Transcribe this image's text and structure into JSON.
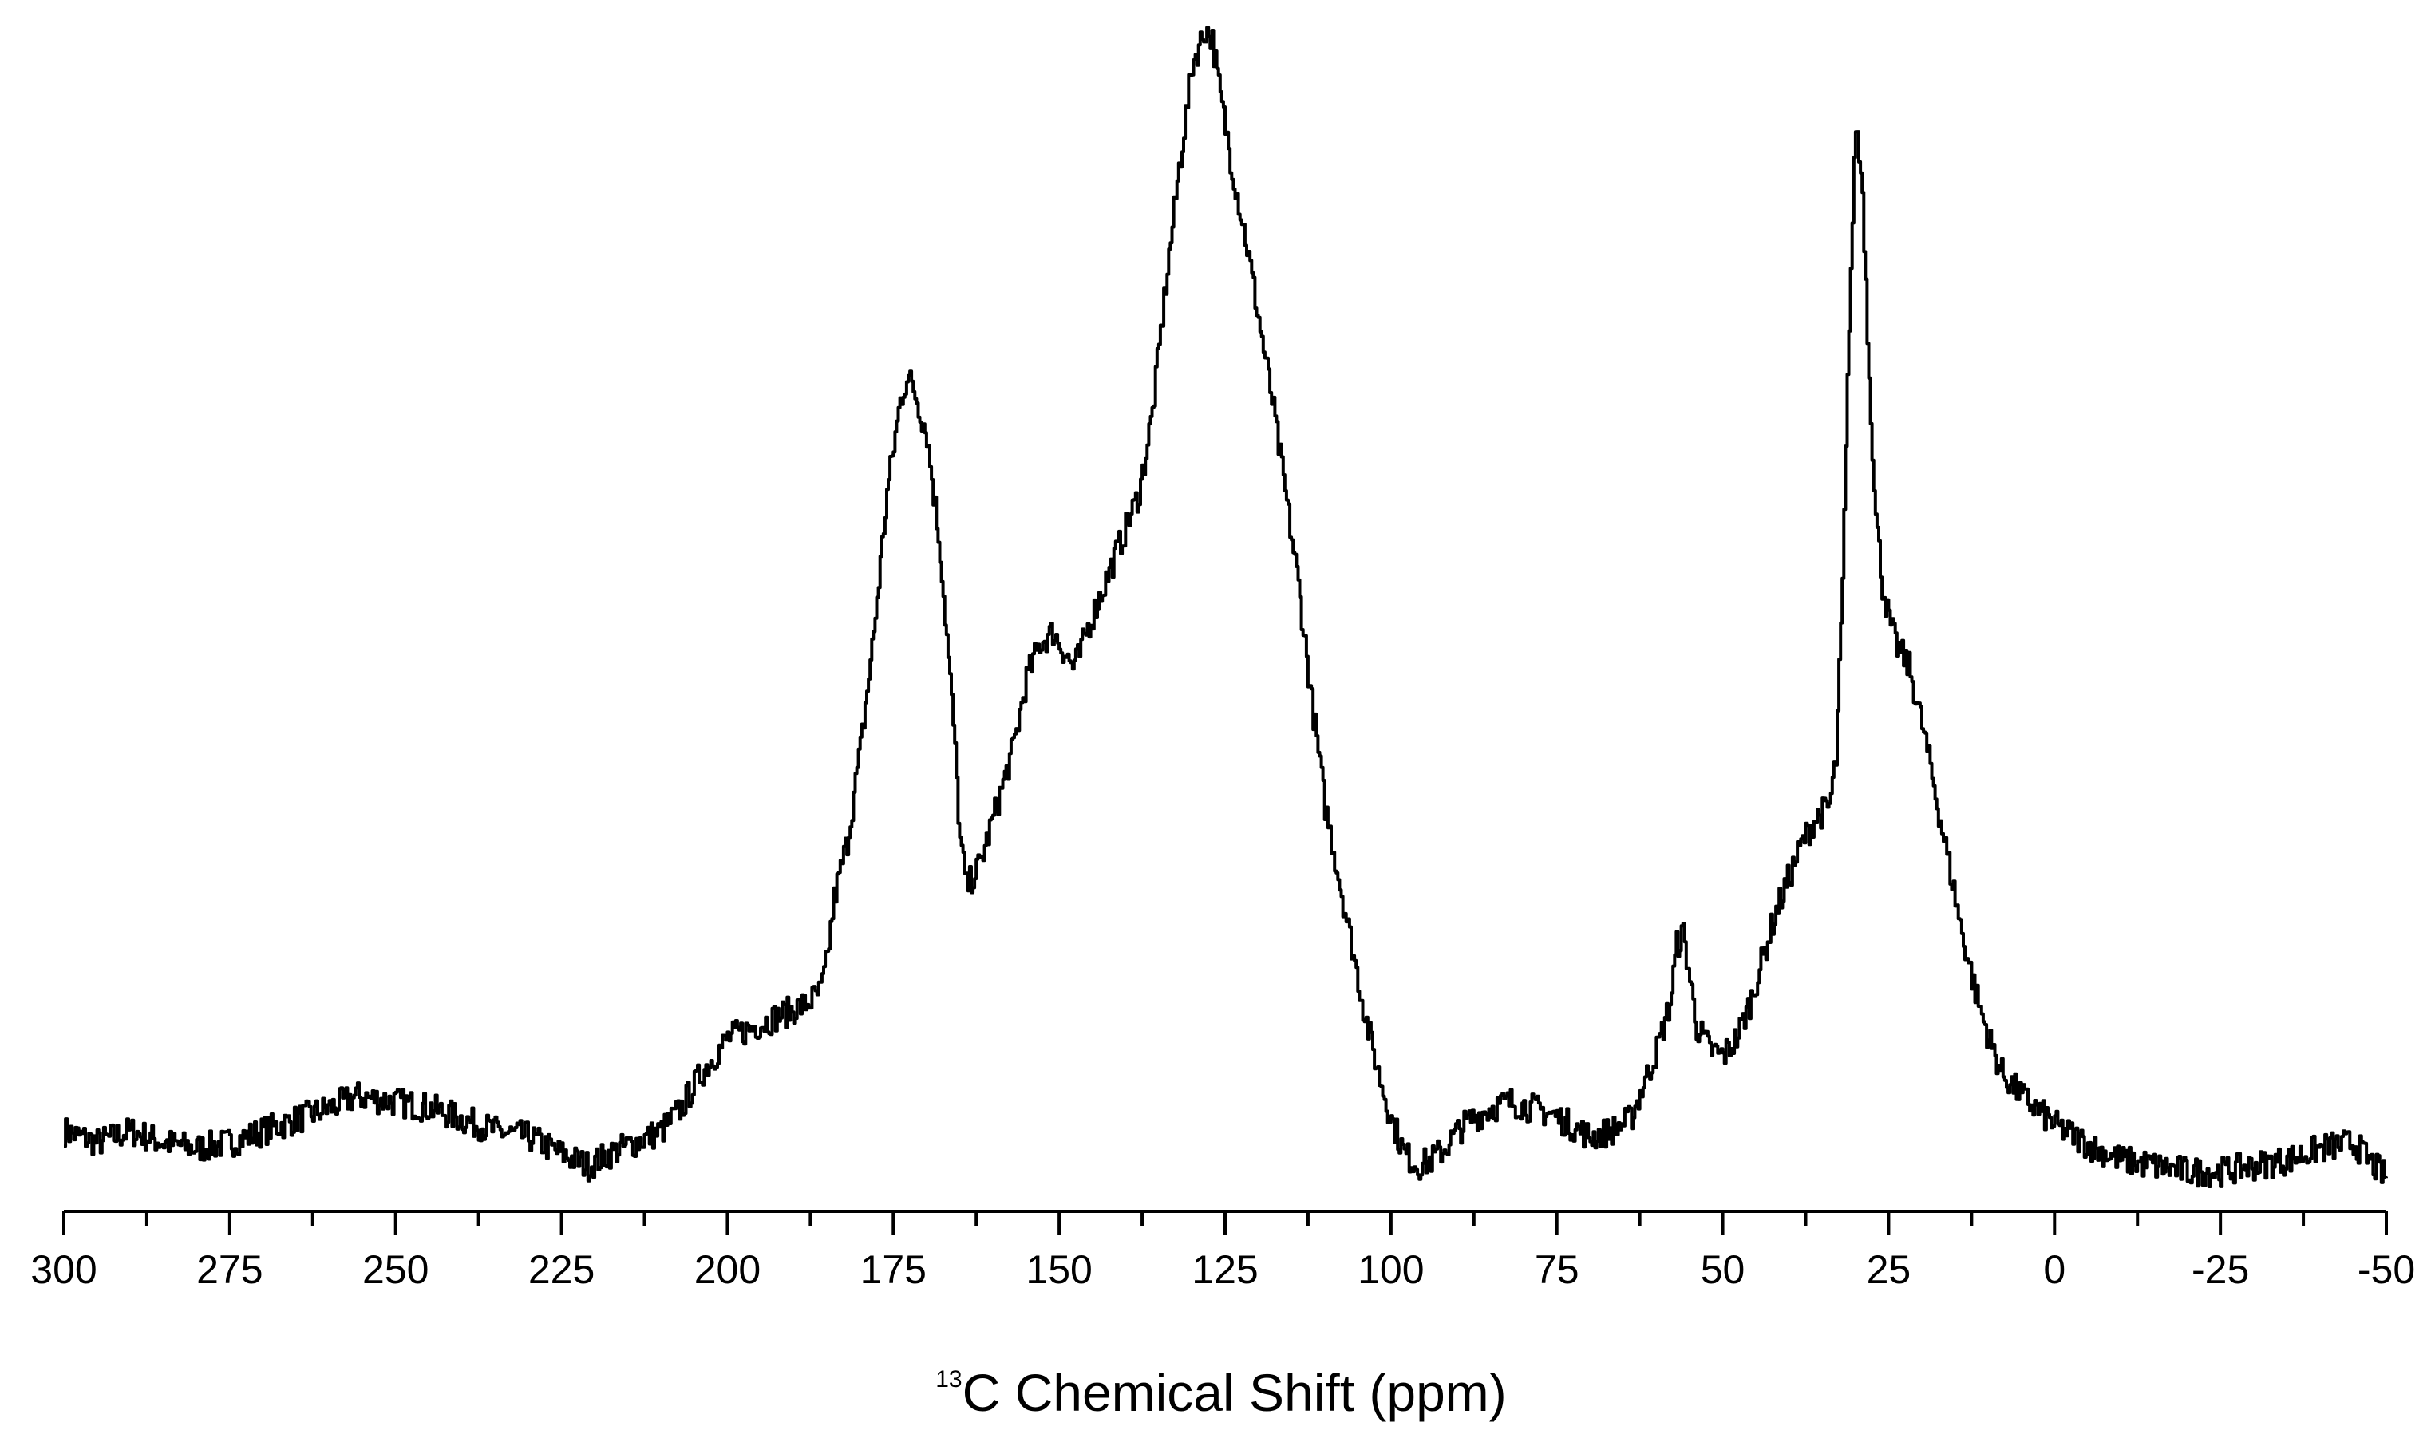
{
  "chart_data": {
    "type": "line",
    "title": "",
    "xlabel_superscript": "13",
    "xlabel": "C Chemical Shift (ppm)",
    "ylabel": "",
    "xlim": [
      300,
      -50
    ],
    "x_reversed": true,
    "ylim": [
      0,
      100
    ],
    "y_axis_visible": false,
    "grid": false,
    "legend": "none",
    "line_color": "#000000",
    "x_major_ticks": [
      300,
      275,
      250,
      225,
      200,
      175,
      150,
      125,
      100,
      75,
      50,
      25,
      0,
      -25,
      -50
    ],
    "x_tick_labels": [
      "300",
      "275",
      "250",
      "225",
      "200",
      "175",
      "150",
      "125",
      "100",
      "75",
      "50",
      "25",
      "0",
      "-25",
      "-50"
    ],
    "series": [
      {
        "x": [
          300,
          295,
          290,
          285,
          280,
          275,
          270,
          265,
          260,
          256,
          250,
          245,
          240,
          235,
          230,
          225,
          221,
          218,
          214,
          210,
          207,
          204,
          200,
          196,
          192,
          188,
          186,
          185,
          184,
          182,
          180,
          178,
          176,
          174,
          173,
          172,
          170,
          168,
          166,
          165,
          164,
          163,
          162,
          160,
          157,
          155,
          153,
          151,
          150,
          148,
          147,
          146,
          144,
          142,
          140,
          138,
          136,
          134,
          132,
          130,
          128,
          127,
          126,
          124,
          122,
          120,
          118,
          116,
          114,
          112,
          110,
          108,
          106,
          104,
          102,
          100,
          98,
          96,
          94,
          92,
          90,
          88,
          85,
          82,
          79,
          76,
          73,
          70,
          67,
          64,
          62,
          60,
          58,
          57,
          56,
          55,
          54,
          52,
          50,
          48,
          46,
          44,
          42,
          40,
          38,
          36,
          34,
          33,
          32,
          31,
          30,
          29,
          28,
          27,
          26,
          25,
          24,
          22,
          20,
          18,
          16,
          14,
          12,
          10,
          8,
          5,
          2,
          0,
          -3,
          -6,
          -10,
          -15,
          -20,
          -25,
          -30,
          -35,
          -40,
          -45,
          -48,
          -50
        ],
        "y": [
          5,
          4,
          5,
          4,
          3.5,
          4,
          5,
          6,
          7,
          8,
          7.5,
          7,
          6,
          5,
          4.5,
          3,
          2,
          3,
          4,
          5,
          7,
          10,
          13,
          14,
          15,
          16,
          17,
          20,
          25,
          30,
          38,
          48,
          60,
          68,
          70,
          69,
          65,
          55,
          40,
          30,
          26,
          27,
          28,
          32,
          38,
          44,
          47,
          48,
          47,
          45,
          46,
          48,
          51,
          54,
          57,
          60,
          67,
          78,
          88,
          97,
          100,
          99,
          95,
          88,
          82,
          75,
          68,
          60,
          52,
          42,
          33,
          27,
          21,
          15,
          10,
          6,
          3,
          2,
          2.5,
          3.5,
          5,
          6,
          7,
          7.5,
          7,
          6.5,
          5.5,
          4.5,
          5,
          6,
          9,
          12,
          16,
          21,
          22,
          18,
          14,
          12,
          11.5,
          13,
          16,
          20,
          24,
          27,
          30,
          32,
          33,
          37,
          52,
          75,
          92,
          86,
          70,
          58,
          52,
          49,
          47,
          45,
          40,
          34,
          28,
          22,
          17,
          13,
          10,
          8,
          6.5,
          5.5,
          4.5,
          3.5,
          2.5,
          2,
          1.5,
          1.5,
          2,
          2.5,
          3.5,
          4,
          2,
          1
        ]
      }
    ]
  }
}
